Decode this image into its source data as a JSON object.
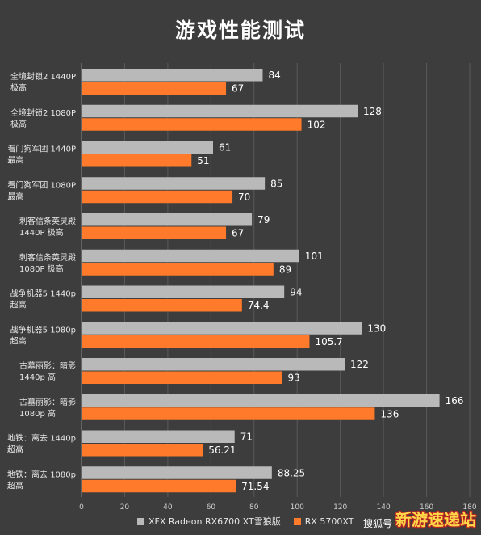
{
  "title": "游戏性能测试",
  "chart_data": {
    "type": "bar",
    "orientation": "horizontal",
    "title": "游戏性能测试",
    "categories": [
      [
        "全境封锁2 1440P",
        "极高"
      ],
      [
        "全境封锁2 1080P",
        "极高"
      ],
      [
        "看门狗军团 1440P",
        "最高"
      ],
      [
        "看门狗军团 1080P",
        "最高"
      ],
      [
        "刺客信条英灵殿",
        "1440P 极高"
      ],
      [
        "刺客信条英灵殿",
        "1080P 极高"
      ],
      [
        "战争机器5 1440p",
        "超高"
      ],
      [
        "战争机器5 1080p",
        "超高"
      ],
      [
        "古墓丽影：暗影",
        "1440p 高"
      ],
      [
        "古墓丽影：暗影",
        "1080p 高"
      ],
      [
        "地铁：离去 1440p",
        "超高"
      ],
      [
        "地铁：离去 1080p",
        "超高"
      ]
    ],
    "series": [
      {
        "name": "XFX Radeon RX6700 XT雪狼版",
        "color": "#b9b9b9",
        "values": [
          84,
          128,
          61,
          85,
          79,
          101,
          94,
          130,
          122,
          166,
          71,
          88.25
        ],
        "labels": [
          "84",
          "128",
          "61",
          "85",
          "79",
          "101",
          "94",
          "130",
          "122",
          "166",
          "71",
          "88.25"
        ]
      },
      {
        "name": "RX 5700XT",
        "color": "#ff7a2a",
        "values": [
          67,
          102,
          51,
          70,
          67,
          89,
          74.4,
          105.7,
          93,
          136,
          56.21,
          71.54
        ],
        "labels": [
          "67",
          "102",
          "51",
          "70",
          "67",
          "89",
          "74.4",
          "105.7",
          "93",
          "136",
          "56.21",
          "71.54"
        ]
      }
    ],
    "xlim": [
      0,
      180
    ],
    "xticks": [
      0,
      20,
      40,
      60,
      80,
      100,
      120,
      140,
      160,
      180
    ],
    "grid": true,
    "legend": "bottom"
  },
  "legend": {
    "items": [
      {
        "label": "XFX Radeon RX6700 XT雪狼版",
        "color": "#b9b9b9"
      },
      {
        "label": "RX 5700XT",
        "color": "#ff7a2a"
      }
    ]
  },
  "watermark": {
    "text": "搜狐号",
    "site": "新游速递站"
  }
}
